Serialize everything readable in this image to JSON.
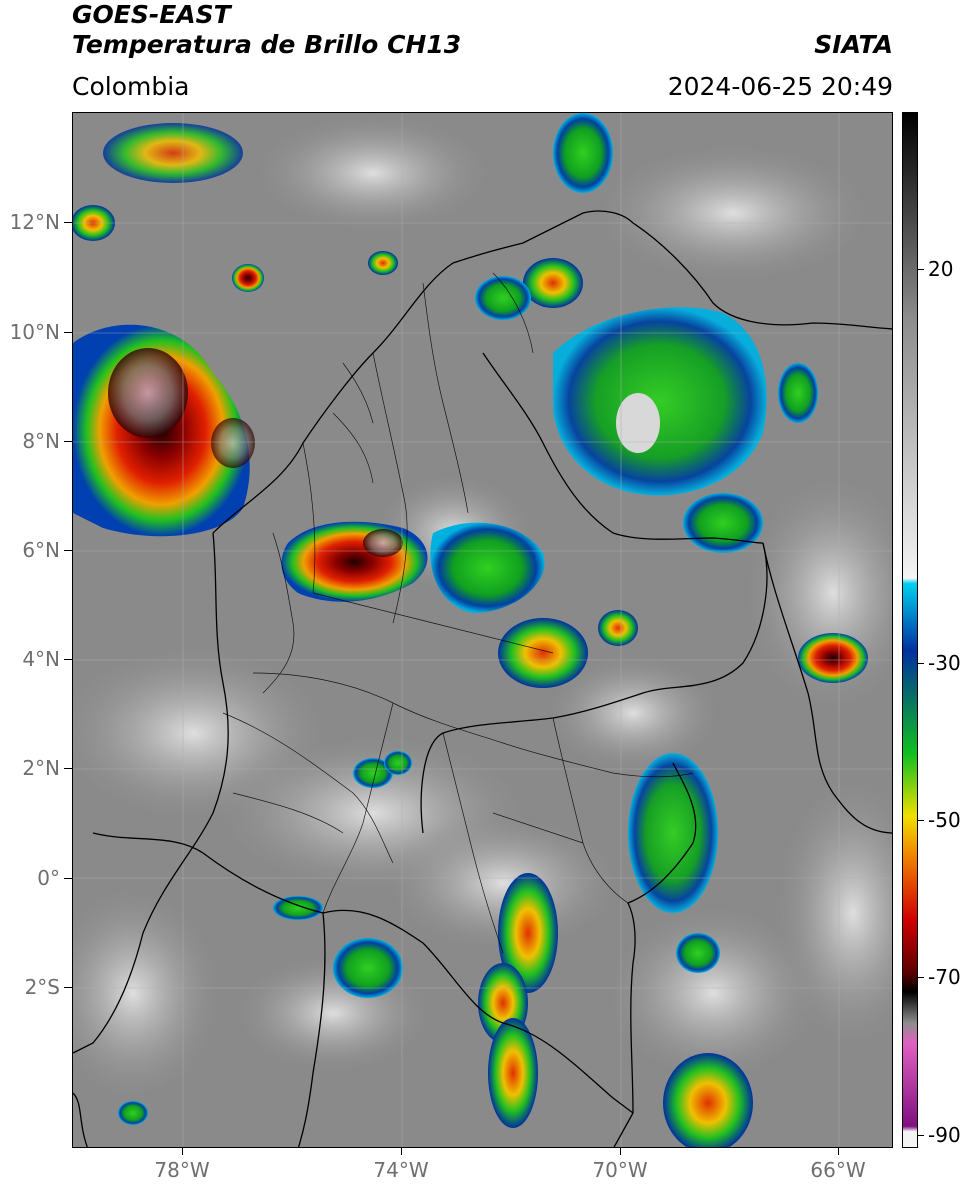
{
  "header": {
    "satellite": "GOES-EAST",
    "product": "Temperatura de Brillo CH13",
    "region": "Colombia",
    "agency": "SIATA",
    "datetime": "2024-06-25 20:49"
  },
  "axes": {
    "lat_labels": [
      "12°N",
      "10°N",
      "8°N",
      "6°N",
      "4°N",
      "2°N",
      "0°",
      "2°S"
    ],
    "lon_labels": [
      "78°W",
      "74°W",
      "70°W",
      "66°W"
    ]
  },
  "colorbar": {
    "labels": [
      "20",
      "-30",
      "-50",
      "-70",
      "-90"
    ],
    "colors": {
      "white": "#f4f4f4",
      "gray": "#8d8d8d",
      "cyan": "#00d0f0",
      "blue": "#0030a0",
      "green": "#10c020",
      "yellow": "#f0e000",
      "orange": "#f08000",
      "red": "#d00000",
      "darkred": "#600000",
      "black": "#000000",
      "pink": "#e060c0",
      "purple": "#801080"
    }
  }
}
